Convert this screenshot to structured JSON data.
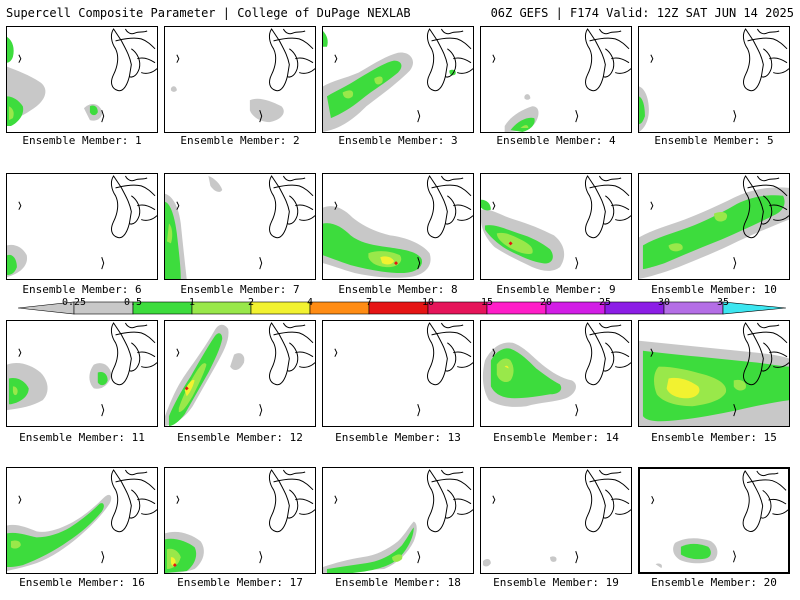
{
  "header": {
    "left": "Supercell Composite Parameter | College of DuPage NEXLAB",
    "right": "06Z GEFS | F174 Valid: 12Z SAT JUN 14 2025"
  },
  "colorbar": {
    "values": [
      "0.25",
      "0.5",
      "1",
      "2",
      "4",
      "7",
      "10",
      "15",
      "20",
      "25",
      "30",
      "35"
    ],
    "colors": [
      "#c8c8c8",
      "#3ddc3d",
      "#99e84a",
      "#f2f230",
      "#ff8c14",
      "#e61414",
      "#e6145a",
      "#ff1ec8",
      "#d21ee6",
      "#8c1ee6",
      "#b46ee6",
      "#3ce6f0"
    ]
  },
  "members": [
    {
      "label": "Ensemble Member: 1"
    },
    {
      "label": "Ensemble Member: 2"
    },
    {
      "label": "Ensemble Member: 3"
    },
    {
      "label": "Ensemble Member: 4"
    },
    {
      "label": "Ensemble Member: 5"
    },
    {
      "label": "Ensemble Member: 6"
    },
    {
      "label": "Ensemble Member: 7"
    },
    {
      "label": "Ensemble Member: 8"
    },
    {
      "label": "Ensemble Member: 9"
    },
    {
      "label": "Ensemble Member: 10"
    },
    {
      "label": "Ensemble Member: 11"
    },
    {
      "label": "Ensemble Member: 12"
    },
    {
      "label": "Ensemble Member: 13"
    },
    {
      "label": "Ensemble Member: 14"
    },
    {
      "label": "Ensemble Member: 15"
    },
    {
      "label": "Ensemble Member: 16"
    },
    {
      "label": "Ensemble Member: 17"
    },
    {
      "label": "Ensemble Member: 18"
    },
    {
      "label": "Ensemble Member: 19"
    },
    {
      "label": "Ensemble Member: 20"
    }
  ]
}
